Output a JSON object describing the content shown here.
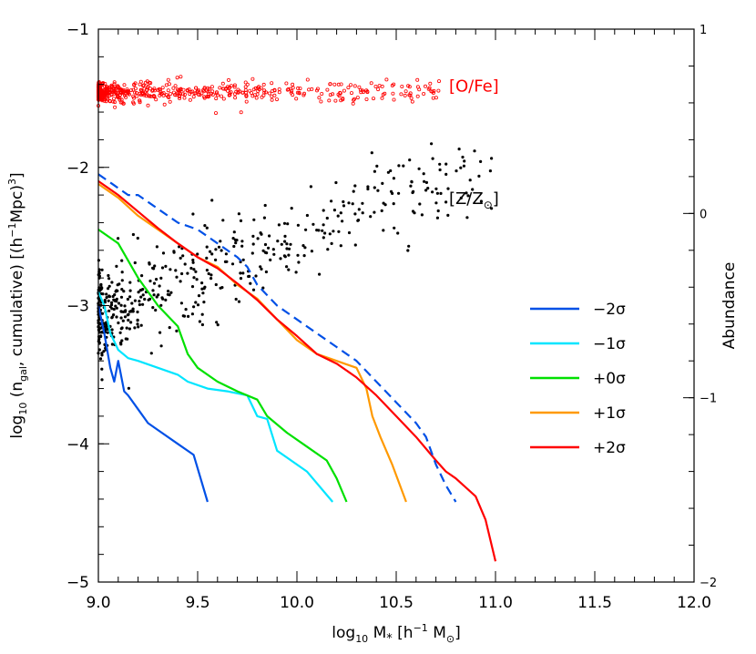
{
  "chart_data": {
    "type": "line",
    "xlabel": "log10 M* [h^-1 M⊙]",
    "ylabel": "log10 (ngal, cumulative) [(h^-1Mpc)^3]",
    "y2label": "Abundance",
    "xlim": [
      9.0,
      12.0
    ],
    "ylim": [
      -5.0,
      -1.0
    ],
    "y2lim": [
      -2.0,
      1.0
    ],
    "x_ticks": [
      "9.0",
      "9.5",
      "10.0",
      "10.5",
      "11.0",
      "11.5",
      "12.0"
    ],
    "y_ticks": [
      "−1",
      "−2",
      "−3",
      "−4",
      "−5"
    ],
    "y2_ticks": [
      "1",
      "0",
      "−1",
      "−2"
    ],
    "annotations": {
      "ofe": {
        "text": "[O/Fe]",
        "color": "#ff0000",
        "x": 10.72,
        "y2": 0.68
      },
      "zz": {
        "text": "[Z/Z⊙]",
        "color": "#000000",
        "x": 10.72,
        "y2": 0.08
      }
    },
    "series": [
      {
        "name": "−2σ",
        "color": "#0050e6",
        "dashed": false,
        "x": [
          9.0,
          9.03,
          9.06,
          9.08,
          9.1,
          9.13,
          9.15,
          9.2,
          9.25,
          9.3,
          9.4,
          9.48,
          9.55
        ],
        "y": [
          -3.0,
          -3.2,
          -3.45,
          -3.55,
          -3.4,
          -3.62,
          -3.65,
          -3.75,
          -3.85,
          -3.9,
          -4.0,
          -4.08,
          -4.42
        ]
      },
      {
        "name": "−1σ",
        "color": "#00e5ff",
        "dashed": false,
        "x": [
          9.0,
          9.03,
          9.06,
          9.1,
          9.15,
          9.2,
          9.3,
          9.4,
          9.45,
          9.55,
          9.65,
          9.75,
          9.8,
          9.85,
          9.9,
          9.95,
          10.05,
          10.18
        ],
        "y": [
          -2.9,
          -3.0,
          -3.2,
          -3.32,
          -3.38,
          -3.4,
          -3.45,
          -3.5,
          -3.55,
          -3.6,
          -3.62,
          -3.65,
          -3.8,
          -3.82,
          -4.05,
          -4.1,
          -4.2,
          -4.42
        ]
      },
      {
        "name": "+0σ",
        "color": "#00e000",
        "dashed": false,
        "x": [
          9.0,
          9.1,
          9.2,
          9.3,
          9.4,
          9.45,
          9.5,
          9.6,
          9.7,
          9.8,
          9.85,
          9.95,
          10.05,
          10.15,
          10.2,
          10.25
        ],
        "y": [
          -2.45,
          -2.55,
          -2.8,
          -3.0,
          -3.15,
          -3.35,
          -3.45,
          -3.55,
          -3.62,
          -3.68,
          -3.8,
          -3.92,
          -4.02,
          -4.12,
          -4.25,
          -4.42
        ]
      },
      {
        "name": "+1σ",
        "color": "#ff9900",
        "dashed": false,
        "x": [
          9.0,
          9.1,
          9.2,
          9.3,
          9.4,
          9.5,
          9.6,
          9.7,
          9.8,
          9.9,
          10.0,
          10.1,
          10.2,
          10.3,
          10.35,
          10.38,
          10.42,
          10.48,
          10.55
        ],
        "y": [
          -2.12,
          -2.22,
          -2.35,
          -2.45,
          -2.55,
          -2.65,
          -2.72,
          -2.85,
          -2.95,
          -3.1,
          -3.25,
          -3.35,
          -3.4,
          -3.45,
          -3.6,
          -3.8,
          -3.95,
          -4.15,
          -4.42
        ]
      },
      {
        "name": "+2σ",
        "color": "#ff0000",
        "dashed": false,
        "x": [
          9.0,
          9.1,
          9.2,
          9.3,
          9.4,
          9.5,
          9.6,
          9.7,
          9.8,
          9.9,
          10.0,
          10.1,
          10.2,
          10.3,
          10.4,
          10.5,
          10.6,
          10.7,
          10.75,
          10.8,
          10.9,
          10.95,
          11.0
        ],
        "y": [
          -2.1,
          -2.2,
          -2.32,
          -2.44,
          -2.55,
          -2.65,
          -2.73,
          -2.84,
          -2.96,
          -3.1,
          -3.22,
          -3.35,
          -3.42,
          -3.52,
          -3.65,
          -3.8,
          -3.95,
          -4.12,
          -4.2,
          -4.25,
          -4.38,
          -4.55,
          -4.85
        ]
      },
      {
        "name": "",
        "color": "#0050e6",
        "dashed": true,
        "x": [
          9.0,
          9.05,
          9.1,
          9.15,
          9.2,
          9.3,
          9.4,
          9.5,
          9.6,
          9.7,
          9.75,
          9.8,
          9.9,
          10.0,
          10.1,
          10.2,
          10.3,
          10.4,
          10.5,
          10.6,
          10.65,
          10.7,
          10.75,
          10.8
        ],
        "y": [
          -2.05,
          -2.1,
          -2.15,
          -2.2,
          -2.2,
          -2.3,
          -2.4,
          -2.45,
          -2.55,
          -2.65,
          -2.72,
          -2.85,
          -3.0,
          -3.1,
          -3.2,
          -3.3,
          -3.4,
          -3.55,
          -3.7,
          -3.85,
          -3.95,
          -4.15,
          -4.3,
          -4.42
        ]
      }
    ],
    "legend": [
      "−2σ",
      "−1σ",
      "+0σ",
      "+1σ",
      "+2σ"
    ],
    "ofe_points": {
      "color": "#ff0000",
      "y2_center": 0.66,
      "y2_spread": 0.05,
      "x_min": 9.0,
      "x_max": 10.72,
      "count": 520
    },
    "zz_points": {
      "color": "#000000",
      "count": 520
    }
  }
}
